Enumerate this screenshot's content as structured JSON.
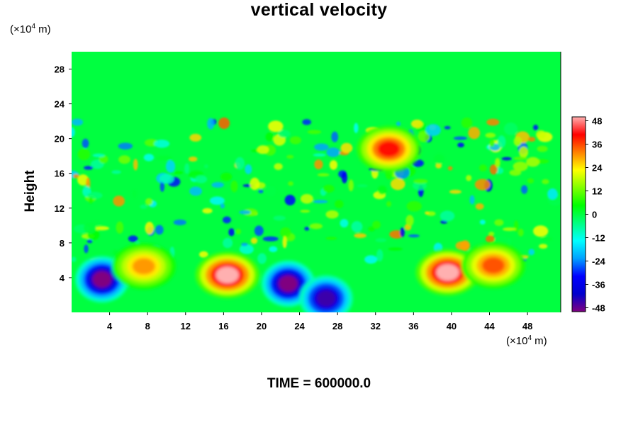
{
  "chart_data": {
    "type": "heatmap",
    "title": "vertical velocity",
    "ylabel": "Height",
    "xlabel": "",
    "x_unit": {
      "base": "(×10",
      "exp": "4",
      "tail": " m)"
    },
    "y_unit": {
      "base": "(×10",
      "exp": "4",
      "tail": " m)"
    },
    "xlim": [
      0,
      51.5
    ],
    "ylim": [
      0,
      30
    ],
    "x_ticks": [
      "4",
      "8",
      "12",
      "16",
      "20",
      "24",
      "28",
      "32",
      "36",
      "40",
      "44",
      "48"
    ],
    "y_ticks": [
      "4",
      "8",
      "12",
      "16",
      "20",
      "24",
      "28"
    ],
    "colorbar": {
      "range": [
        -50,
        50
      ],
      "tick_labels": [
        "48",
        "36",
        "24",
        "12",
        "0",
        "-12",
        "-24",
        "-36",
        "-48"
      ],
      "stops": [
        "#800080",
        "#0000cd",
        "#0000ff",
        "#00a0ff",
        "#00ffff",
        "#00ff80",
        "#00ff00",
        "#80ff00",
        "#ffff00",
        "#ff8000",
        "#ff0000",
        "#ffb0b0"
      ]
    },
    "features": [
      {
        "label": "downdraft",
        "x": 3.2,
        "y": 3.8,
        "value": -50
      },
      {
        "label": "updraft",
        "x": 7.6,
        "y": 5.3,
        "value": 30
      },
      {
        "label": "updraft",
        "x": 16.4,
        "y": 4.3,
        "value": 50
      },
      {
        "label": "downdraft",
        "x": 22.8,
        "y": 3.3,
        "value": -50
      },
      {
        "label": "downdraft",
        "x": 26.8,
        "y": 1.6,
        "value": -45
      },
      {
        "label": "updraft",
        "x": 39.6,
        "y": 4.6,
        "value": 50
      },
      {
        "label": "updraft",
        "x": 44.4,
        "y": 5.4,
        "value": 35
      },
      {
        "label": "updraft",
        "x": 33.4,
        "y": 18.8,
        "value": 40
      }
    ]
  },
  "footer": {
    "time_label": "TIME = 600000.0"
  }
}
